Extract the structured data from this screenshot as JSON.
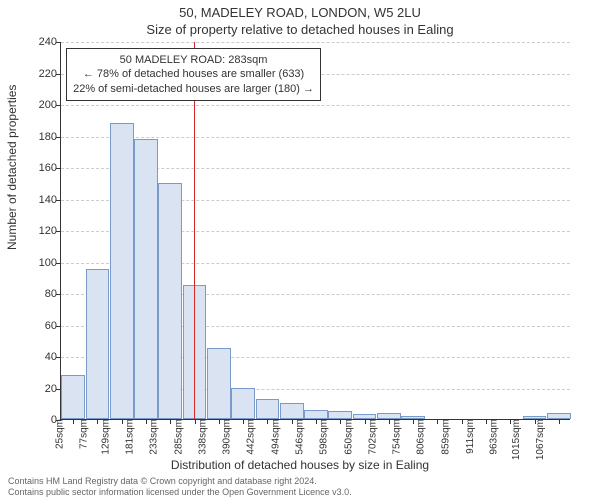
{
  "chart": {
    "type": "histogram",
    "title_main": "50, MADELEY ROAD, LONDON, W5 2LU",
    "title_sub": "Size of property relative to detached houses in Ealing",
    "ylabel": "Number of detached properties",
    "xlabel": "Distribution of detached houses by size in Ealing",
    "ylim": [
      0,
      240
    ],
    "ytick_step": 20,
    "yticks": [
      0,
      20,
      40,
      60,
      80,
      100,
      120,
      140,
      160,
      180,
      200,
      220,
      240
    ],
    "x_categories": [
      "25sqm",
      "77sqm",
      "129sqm",
      "181sqm",
      "233sqm",
      "285sqm",
      "338sqm",
      "390sqm",
      "442sqm",
      "494sqm",
      "546sqm",
      "598sqm",
      "650sqm",
      "702sqm",
      "754sqm",
      "806sqm",
      "859sqm",
      "911sqm",
      "963sqm",
      "1015sqm",
      "1067sqm"
    ],
    "values": [
      28,
      95,
      188,
      178,
      150,
      85,
      45,
      20,
      13,
      10,
      6,
      5,
      3,
      4,
      2,
      0,
      0,
      0,
      0,
      2,
      4
    ],
    "bar_fill": "#d9e3f2",
    "bar_border": "#7a9bc9",
    "background_color": "#ffffff",
    "grid_color": "#cccccc",
    "axis_color": "#333333",
    "marker": {
      "position_index": 4.96,
      "color": "#d62728",
      "line1": "50 MADELEY ROAD: 283sqm",
      "line2": "← 78% of detached houses are smaller (633)",
      "line3": "22% of semi-detached houses are larger (180) →"
    },
    "title_fontsize": 13,
    "label_fontsize": 12,
    "tick_fontsize": 11
  },
  "footer": {
    "line1": "Contains HM Land Registry data © Crown copyright and database right 2024.",
    "line2": "Contains public sector information licensed under the Open Government Licence v3.0."
  }
}
